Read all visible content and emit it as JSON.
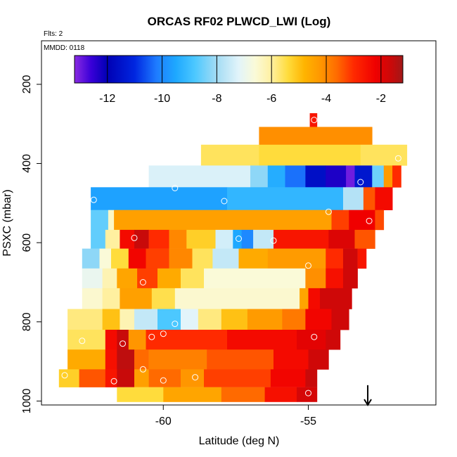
{
  "chart_data": {
    "type": "heatmap",
    "title": "ORCAS RF02 PLWCD_LWI (Log)",
    "subtitle_flights": "Flts: 2",
    "subtitle_date": "MMDD: 0118",
    "xlabel": "Latitude (deg N)",
    "ylabel": "PSXC (mbar)",
    "xlim": [
      -64.2,
      -50.6
    ],
    "ylim": [
      1010,
      90
    ],
    "y_reversed": true,
    "x_ticks": [
      -60,
      -55
    ],
    "x_tick_labels": [
      "-60",
      "-55"
    ],
    "y_ticks": [
      200,
      400,
      600,
      800,
      1000
    ],
    "y_tick_labels": [
      "200",
      "400",
      "600",
      "800",
      "1000"
    ],
    "colorbar": {
      "range": [
        -13.2,
        -1.2
      ],
      "ticks": [
        -12,
        -10,
        -8,
        -6,
        -4,
        -2
      ],
      "tick_labels": [
        "-12",
        "-10",
        "-8",
        "-6",
        "-4",
        "-2"
      ],
      "stops": [
        [
          -13.2,
          "#8a2be2"
        ],
        [
          -12.6,
          "#3a00d8"
        ],
        [
          -12.0,
          "#0000b4"
        ],
        [
          -11.0,
          "#0026e0"
        ],
        [
          -10.2,
          "#1e7cff"
        ],
        [
          -9.5,
          "#1ea8ff"
        ],
        [
          -8.8,
          "#4cc8ff"
        ],
        [
          -8.0,
          "#a4dcf4"
        ],
        [
          -7.2,
          "#e2f4fa"
        ],
        [
          -6.6,
          "#fafad8"
        ],
        [
          -6.0,
          "#fff0a0"
        ],
        [
          -5.4,
          "#ffdc3c"
        ],
        [
          -4.8,
          "#ffb400"
        ],
        [
          -4.2,
          "#ff9600"
        ],
        [
          -3.6,
          "#ff6a00"
        ],
        [
          -3.0,
          "#ff2a00"
        ],
        [
          -2.2,
          "#f00000"
        ],
        [
          -1.6,
          "#c80a0a"
        ],
        [
          -1.2,
          "#a01818"
        ]
      ]
    },
    "heatmap_rows": [
      {
        "p": 290,
        "segments": [
          {
            "lat0": -54.95,
            "lat1": -54.7,
            "v": -2.6
          }
        ]
      },
      {
        "p": 325,
        "segments": [
          {
            "lat0": -56.7,
            "lat1": -52.8,
            "v": -4.1
          }
        ]
      },
      {
        "p": 380,
        "segments": [
          {
            "lat0": -58.7,
            "lat1": -56.7,
            "v": -5.6
          },
          {
            "lat0": -56.7,
            "lat1": -53.2,
            "v": -5.4
          },
          {
            "lat0": -53.2,
            "lat1": -51.6,
            "v": -5.6
          }
        ]
      },
      {
        "p": 430,
        "segments": [
          {
            "lat0": -60.5,
            "lat1": -57.0,
            "v": -7.3
          },
          {
            "lat0": -57.0,
            "lat1": -56.4,
            "v": -8.2
          },
          {
            "lat0": -56.4,
            "lat1": -55.8,
            "v": -9.4
          },
          {
            "lat0": -55.8,
            "lat1": -55.1,
            "v": -10.3
          },
          {
            "lat0": -55.1,
            "lat1": -54.4,
            "v": -11.6
          },
          {
            "lat0": -54.4,
            "lat1": -53.7,
            "v": -12.3
          },
          {
            "lat0": -53.7,
            "lat1": -53.4,
            "v": -13.0
          },
          {
            "lat0": -53.4,
            "lat1": -52.8,
            "v": -11.4
          },
          {
            "lat0": -52.8,
            "lat1": -52.4,
            "v": -8.5
          },
          {
            "lat0": -52.4,
            "lat1": -52.1,
            "v": -4.3
          },
          {
            "lat0": -52.1,
            "lat1": -51.8,
            "v": -3.0
          }
        ]
      },
      {
        "p": 490,
        "segments": [
          {
            "lat0": -62.5,
            "lat1": -57.8,
            "v": -9.6
          },
          {
            "lat0": -57.8,
            "lat1": -53.8,
            "v": -9.2
          },
          {
            "lat0": -53.8,
            "lat1": -53.1,
            "v": -7.8
          },
          {
            "lat0": -53.1,
            "lat1": -52.7,
            "v": -3.4
          },
          {
            "lat0": -52.7,
            "lat1": -52.1,
            "v": -2.4
          }
        ]
      },
      {
        "p": 545,
        "segments": [
          {
            "lat0": -62.5,
            "lat1": -61.9,
            "v": -8.6
          },
          {
            "lat0": -61.9,
            "lat1": -61.7,
            "v": -6.4
          },
          {
            "lat0": -61.7,
            "lat1": -54.2,
            "v": -4.4
          },
          {
            "lat0": -54.2,
            "lat1": -53.6,
            "v": -3.2
          },
          {
            "lat0": -53.6,
            "lat1": -52.7,
            "v": -2.2
          },
          {
            "lat0": -52.7,
            "lat1": -52.4,
            "v": -3.3
          }
        ]
      },
      {
        "p": 590,
        "segments": [
          {
            "lat0": -62.5,
            "lat1": -62.0,
            "v": -8.6
          },
          {
            "lat0": -62.0,
            "lat1": -61.5,
            "v": -6.0
          },
          {
            "lat0": -61.5,
            "lat1": -61.0,
            "v": -2.4
          },
          {
            "lat0": -61.0,
            "lat1": -60.5,
            "v": -1.6
          },
          {
            "lat0": -60.5,
            "lat1": -59.8,
            "v": -3.0
          },
          {
            "lat0": -59.8,
            "lat1": -59.2,
            "v": -4.0
          },
          {
            "lat0": -59.2,
            "lat1": -58.2,
            "v": -5.2
          },
          {
            "lat0": -58.2,
            "lat1": -57.6,
            "v": -7.4
          },
          {
            "lat0": -57.6,
            "lat1": -57.3,
            "v": -9.5
          },
          {
            "lat0": -57.3,
            "lat1": -56.9,
            "v": -10.0
          },
          {
            "lat0": -56.9,
            "lat1": -56.2,
            "v": -7.6
          },
          {
            "lat0": -56.2,
            "lat1": -54.3,
            "v": -2.6
          },
          {
            "lat0": -54.3,
            "lat1": -53.4,
            "v": -1.9
          },
          {
            "lat0": -53.4,
            "lat1": -52.7,
            "v": -3.4
          }
        ]
      },
      {
        "p": 640,
        "segments": [
          {
            "lat0": -62.8,
            "lat1": -62.2,
            "v": -8.2
          },
          {
            "lat0": -62.2,
            "lat1": -61.8,
            "v": -6.6
          },
          {
            "lat0": -61.8,
            "lat1": -61.2,
            "v": -5.4
          },
          {
            "lat0": -61.2,
            "lat1": -60.6,
            "v": -2.3
          },
          {
            "lat0": -60.6,
            "lat1": -59.8,
            "v": -3.2
          },
          {
            "lat0": -59.8,
            "lat1": -59.0,
            "v": -4.0
          },
          {
            "lat0": -59.0,
            "lat1": -58.3,
            "v": -5.6
          },
          {
            "lat0": -58.3,
            "lat1": -57.4,
            "v": -7.6
          },
          {
            "lat0": -57.4,
            "lat1": -56.4,
            "v": -4.6
          },
          {
            "lat0": -56.4,
            "lat1": -54.4,
            "v": -4.3
          },
          {
            "lat0": -54.4,
            "lat1": -53.8,
            "v": -3.0
          },
          {
            "lat0": -53.8,
            "lat1": -53.3,
            "v": -1.7
          },
          {
            "lat0": -53.3,
            "lat1": -53.0,
            "v": -2.6
          }
        ]
      },
      {
        "p": 690,
        "segments": [
          {
            "lat0": -62.8,
            "lat1": -62.1,
            "v": -7.0
          },
          {
            "lat0": -62.1,
            "lat1": -61.6,
            "v": -6.2
          },
          {
            "lat0": -61.6,
            "lat1": -60.9,
            "v": -4.5
          },
          {
            "lat0": -60.9,
            "lat1": -60.2,
            "v": -3.2
          },
          {
            "lat0": -60.2,
            "lat1": -59.4,
            "v": -4.6
          },
          {
            "lat0": -59.4,
            "lat1": -58.6,
            "v": -5.6
          },
          {
            "lat0": -58.6,
            "lat1": -55.1,
            "v": -6.6
          },
          {
            "lat0": -55.1,
            "lat1": -54.4,
            "v": -4.1
          },
          {
            "lat0": -54.4,
            "lat1": -53.8,
            "v": -2.5
          },
          {
            "lat0": -53.8,
            "lat1": -53.3,
            "v": -1.7
          }
        ]
      },
      {
        "p": 740,
        "segments": [
          {
            "lat0": -62.8,
            "lat1": -62.1,
            "v": -6.5
          },
          {
            "lat0": -62.1,
            "lat1": -61.5,
            "v": -6.0
          },
          {
            "lat0": -61.5,
            "lat1": -60.4,
            "v": -4.4
          },
          {
            "lat0": -60.4,
            "lat1": -59.6,
            "v": -5.5
          },
          {
            "lat0": -59.6,
            "lat1": -55.3,
            "v": -6.5
          },
          {
            "lat0": -55.3,
            "lat1": -55.0,
            "v": -4.5
          },
          {
            "lat0": -55.0,
            "lat1": -54.6,
            "v": -2.4
          },
          {
            "lat0": -54.6,
            "lat1": -53.5,
            "v": -1.7
          }
        ]
      },
      {
        "p": 795,
        "segments": [
          {
            "lat0": -63.3,
            "lat1": -62.1,
            "v": -5.8
          },
          {
            "lat0": -62.1,
            "lat1": -61.5,
            "v": -5.0
          },
          {
            "lat0": -61.5,
            "lat1": -61.0,
            "v": -6.2
          },
          {
            "lat0": -61.0,
            "lat1": -60.2,
            "v": -7.6
          },
          {
            "lat0": -60.2,
            "lat1": -59.4,
            "v": -8.8
          },
          {
            "lat0": -59.4,
            "lat1": -58.8,
            "v": -7.2
          },
          {
            "lat0": -58.8,
            "lat1": -58.0,
            "v": -5.8
          },
          {
            "lat0": -58.0,
            "lat1": -57.1,
            "v": -5.0
          },
          {
            "lat0": -57.1,
            "lat1": -55.9,
            "v": -4.3
          },
          {
            "lat0": -55.9,
            "lat1": -55.1,
            "v": -3.8
          },
          {
            "lat0": -55.1,
            "lat1": -54.2,
            "v": -2.3
          },
          {
            "lat0": -54.2,
            "lat1": -53.6,
            "v": -1.7
          }
        ]
      },
      {
        "p": 845,
        "segments": [
          {
            "lat0": -63.3,
            "lat1": -62.0,
            "v": -5.6
          },
          {
            "lat0": -62.0,
            "lat1": -61.6,
            "v": -2.4
          },
          {
            "lat0": -61.6,
            "lat1": -61.2,
            "v": -1.6
          },
          {
            "lat0": -61.2,
            "lat1": -60.6,
            "v": -4.2
          },
          {
            "lat0": -60.6,
            "lat1": -57.8,
            "v": -3.0
          },
          {
            "lat0": -57.8,
            "lat1": -55.4,
            "v": -2.4
          },
          {
            "lat0": -55.4,
            "lat1": -54.4,
            "v": -2.0
          },
          {
            "lat0": -54.4,
            "lat1": -53.9,
            "v": -1.7
          }
        ]
      },
      {
        "p": 895,
        "segments": [
          {
            "lat0": -63.3,
            "lat1": -62.0,
            "v": -4.6
          },
          {
            "lat0": -62.0,
            "lat1": -61.6,
            "v": -2.5
          },
          {
            "lat0": -61.6,
            "lat1": -61.0,
            "v": -1.5
          },
          {
            "lat0": -61.0,
            "lat1": -60.5,
            "v": -3.6
          },
          {
            "lat0": -60.5,
            "lat1": -58.5,
            "v": -3.9
          },
          {
            "lat0": -58.5,
            "lat1": -56.2,
            "v": -3.4
          },
          {
            "lat0": -56.2,
            "lat1": -55.0,
            "v": -2.4
          },
          {
            "lat0": -55.0,
            "lat1": -54.3,
            "v": -1.7
          }
        ]
      },
      {
        "p": 945,
        "segments": [
          {
            "lat0": -63.6,
            "lat1": -62.9,
            "v": -5.2
          },
          {
            "lat0": -62.9,
            "lat1": -62.0,
            "v": -3.4
          },
          {
            "lat0": -62.0,
            "lat1": -61.6,
            "v": -2.6
          },
          {
            "lat0": -61.6,
            "lat1": -61.0,
            "v": -1.6
          },
          {
            "lat0": -61.0,
            "lat1": -60.5,
            "v": -4.4
          },
          {
            "lat0": -60.5,
            "lat1": -59.4,
            "v": -3.6
          },
          {
            "lat0": -59.4,
            "lat1": -58.6,
            "v": -4.2
          },
          {
            "lat0": -58.6,
            "lat1": -56.3,
            "v": -3.2
          },
          {
            "lat0": -56.3,
            "lat1": -55.1,
            "v": -2.3
          },
          {
            "lat0": -55.1,
            "lat1": -54.7,
            "v": -1.6
          }
        ]
      },
      {
        "p": 985,
        "segments": [
          {
            "lat0": -61.6,
            "lat1": -60.0,
            "v": -5.4
          },
          {
            "lat0": -60.0,
            "lat1": -58.0,
            "v": -4.5
          },
          {
            "lat0": -58.0,
            "lat1": -56.5,
            "v": -3.6
          },
          {
            "lat0": -56.5,
            "lat1": -55.4,
            "v": -2.5
          },
          {
            "lat0": -55.4,
            "lat1": -54.7,
            "v": -1.8
          }
        ]
      }
    ],
    "sample_markers": [
      {
        "lat": -54.8,
        "p": 290
      },
      {
        "lat": -51.9,
        "p": 387
      },
      {
        "lat": -53.2,
        "p": 447
      },
      {
        "lat": -59.6,
        "p": 462
      },
      {
        "lat": -62.4,
        "p": 492
      },
      {
        "lat": -57.9,
        "p": 495
      },
      {
        "lat": -54.3,
        "p": 522
      },
      {
        "lat": -52.9,
        "p": 545
      },
      {
        "lat": -61.0,
        "p": 588
      },
      {
        "lat": -57.4,
        "p": 590
      },
      {
        "lat": -56.2,
        "p": 595
      },
      {
        "lat": -55.0,
        "p": 658
      },
      {
        "lat": -60.7,
        "p": 700
      },
      {
        "lat": -59.6,
        "p": 805
      },
      {
        "lat": -60.0,
        "p": 830
      },
      {
        "lat": -60.4,
        "p": 838
      },
      {
        "lat": -54.8,
        "p": 838
      },
      {
        "lat": -62.8,
        "p": 848
      },
      {
        "lat": -61.4,
        "p": 855
      },
      {
        "lat": -60.7,
        "p": 920
      },
      {
        "lat": -63.4,
        "p": 935
      },
      {
        "lat": -58.9,
        "p": 940
      },
      {
        "lat": -61.7,
        "p": 950
      },
      {
        "lat": -60.0,
        "p": 948
      },
      {
        "lat": -55.0,
        "p": 980
      }
    ],
    "arrow_marker": {
      "lat": -52.95,
      "p_from": 960,
      "p_to": 1010
    }
  }
}
